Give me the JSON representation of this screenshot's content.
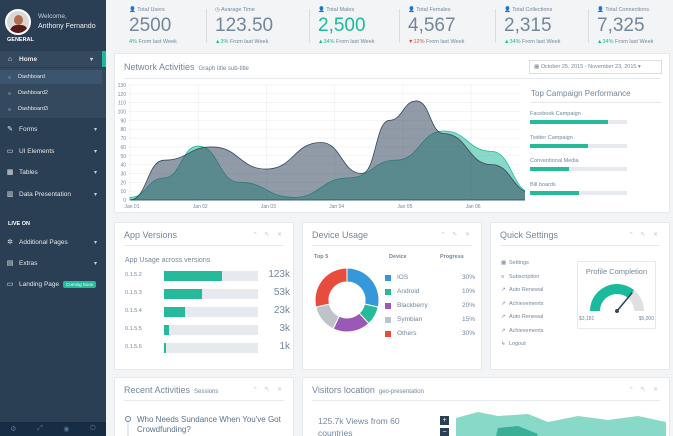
{
  "sidebar": {
    "welcome": "Welcome,",
    "user_name": "Anthony Fernando",
    "section_general": "GENERAL",
    "items": [
      {
        "label": "Home",
        "icon": "home-icon",
        "glyph": "⌂"
      },
      {
        "label": "Forms",
        "icon": "edit-icon",
        "glyph": "✎"
      },
      {
        "label": "UI Elements",
        "icon": "desktop-icon",
        "glyph": "▭"
      },
      {
        "label": "Tables",
        "icon": "table-icon",
        "glyph": "▦"
      },
      {
        "label": "Data Presentation",
        "icon": "bar-chart-icon",
        "glyph": "▥"
      }
    ],
    "sub_items": [
      "Dashboard",
      "Dashboard2",
      "Dashboard3"
    ],
    "section_live": "LIVE ON",
    "live_items": [
      {
        "label": "Additional Pages",
        "icon": "bug-icon",
        "glyph": "✲"
      },
      {
        "label": "Extras",
        "icon": "windows-icon",
        "glyph": "▤"
      },
      {
        "label": "Landing Page",
        "icon": "laptop-icon",
        "glyph": "▭",
        "badge": "Coming Soon"
      }
    ],
    "footer_icons": [
      "settings-icon",
      "fullscreen-icon",
      "eye-slash-icon",
      "power-icon"
    ],
    "footer_glyphs": [
      "⚙",
      "⤢",
      "◉",
      "⏻"
    ]
  },
  "top_tiles": [
    {
      "icon": "user-icon",
      "glyph": "👤",
      "title": "Total Users",
      "value": "2500",
      "change_pct": "4%",
      "change_text": "From last Week",
      "direction": "up"
    },
    {
      "icon": "clock-icon",
      "glyph": "◷",
      "title": "Avarage Time",
      "value": "123.50",
      "change_pct": "3%",
      "change_text": "From last Week",
      "direction": "up"
    },
    {
      "icon": "user-icon",
      "glyph": "👤",
      "title": "Total Males",
      "value": "2,500",
      "change_pct": "34%",
      "change_text": "From last Week",
      "direction": "up",
      "highlight": true
    },
    {
      "icon": "user-icon",
      "glyph": "👤",
      "title": "Total Females",
      "value": "4,567",
      "change_pct": "12%",
      "change_text": "From last Week",
      "direction": "down"
    },
    {
      "icon": "user-icon",
      "glyph": "👤",
      "title": "Total Collections",
      "value": "2,315",
      "change_pct": "34%",
      "change_text": "From last Week",
      "direction": "up"
    },
    {
      "icon": "user-icon",
      "glyph": "👤",
      "title": "Total Connections",
      "value": "7,325",
      "change_pct": "34%",
      "change_text": "From last Week",
      "direction": "up"
    }
  ],
  "network": {
    "title": "Network Activities",
    "subtitle": "Graph title sub-title",
    "date_range": "October 25, 2015 - November 23, 2015",
    "campaign_title": "Top Campaign Performance",
    "campaigns": [
      {
        "label": "Facebook Campaign",
        "value": 0.8
      },
      {
        "label": "Twitter Campaign",
        "value": 0.6
      },
      {
        "label": "Conventional Media",
        "value": 0.4
      },
      {
        "label": "Bill boards",
        "value": 0.5
      }
    ]
  },
  "chart_data": {
    "type": "area",
    "x": [
      "Jan 01",
      "Jan 02",
      "Jan 03",
      "Jan 04",
      "Jan 05",
      "Jan 06"
    ],
    "ylim": [
      0,
      130
    ],
    "yticks": [
      0,
      10,
      20,
      30,
      40,
      50,
      60,
      70,
      80,
      90,
      100,
      110,
      120,
      130
    ],
    "series": [
      {
        "color": "#26b99a",
        "points": [
          [
            0,
            3
          ],
          [
            0.5,
            25
          ],
          [
            1.0,
            61
          ],
          [
            1.6,
            20
          ],
          [
            2.4,
            3
          ],
          [
            3.2,
            25
          ],
          [
            3.9,
            45
          ],
          [
            4.6,
            78
          ],
          [
            5.3,
            55
          ],
          [
            5.9,
            8
          ]
        ]
      },
      {
        "color": "#34495e",
        "points": [
          [
            0,
            0
          ],
          [
            0.5,
            45
          ],
          [
            1.2,
            60
          ],
          [
            2.0,
            35
          ],
          [
            2.8,
            65
          ],
          [
            3.4,
            30
          ],
          [
            3.8,
            90
          ],
          [
            4.2,
            112
          ],
          [
            4.6,
            75
          ],
          [
            5.3,
            40
          ],
          [
            5.9,
            8
          ]
        ]
      }
    ]
  },
  "app_versions": {
    "title": "App Versions",
    "subtitle": "App Usage across versions",
    "rows": [
      {
        "version": "0.1.5.2",
        "progress": 0.62,
        "count": "123k"
      },
      {
        "version": "0.1.5.3",
        "progress": 0.4,
        "count": "53k"
      },
      {
        "version": "0.1.5.4",
        "progress": 0.22,
        "count": "23k"
      },
      {
        "version": "0.1.5.5",
        "progress": 0.05,
        "count": "3k"
      },
      {
        "version": "0.1.5.6",
        "progress": 0.02,
        "count": "1k"
      }
    ]
  },
  "device_usage": {
    "title": "Device Usage",
    "col_top": "Top 5",
    "col_device": "Device",
    "col_progress": "Progress",
    "devices": [
      {
        "name": "IOS",
        "pct": "30%",
        "value": 30,
        "color": "#3498db"
      },
      {
        "name": "Android",
        "pct": "10%",
        "value": 10,
        "color": "#26b99a"
      },
      {
        "name": "Blackberry",
        "pct": "20%",
        "value": 20,
        "color": "#9b59b6"
      },
      {
        "name": "Symbian",
        "pct": "15%",
        "value": 15,
        "color": "#bdc3c7"
      },
      {
        "name": "Others",
        "pct": "30%",
        "value": 30,
        "color": "#e74c3c"
      }
    ]
  },
  "quick_settings": {
    "title": "Quick Settings",
    "items": [
      {
        "label": "Settings",
        "icon": "calendar-icon",
        "glyph": "▦"
      },
      {
        "label": "Subscription",
        "icon": "bars-icon",
        "glyph": "≡"
      },
      {
        "label": "Auto Renewal",
        "icon": "chart-icon",
        "glyph": "↗"
      },
      {
        "label": "Achievements",
        "icon": "chart-icon",
        "glyph": "↗"
      },
      {
        "label": "Auto Renewal",
        "icon": "chart-icon",
        "glyph": "↗"
      },
      {
        "label": "Achievements",
        "icon": "chart-icon",
        "glyph": "↗"
      },
      {
        "label": "Logout",
        "icon": "signout-icon",
        "glyph": "↳"
      }
    ],
    "profile_title": "Profile Completion",
    "gauge_min": "$3,181",
    "gauge_max": "$5,000",
    "gauge_level": 0.72
  },
  "recent": {
    "title": "Recent Activities",
    "subtitle": "Sessions",
    "item_title": "Who Needs Sundance When You've Got Crowdfunding?"
  },
  "visitors": {
    "title": "Visitors location",
    "subtitle": "geo-presentation",
    "stat": "125.7k Views from 60 countries",
    "zoom_in": "+",
    "zoom_out": "−"
  },
  "panel_tools": "^ ✎ ✕"
}
